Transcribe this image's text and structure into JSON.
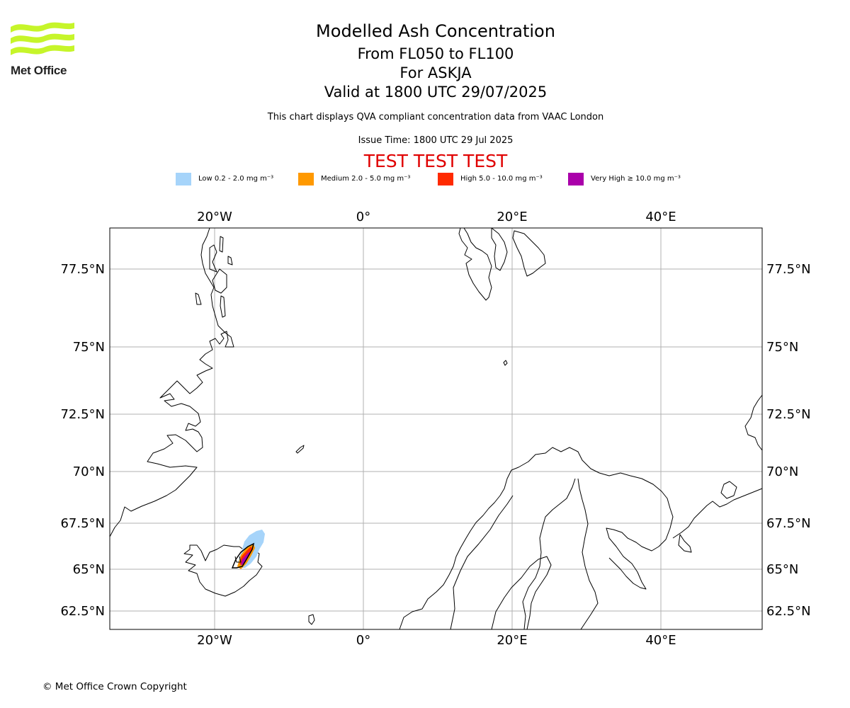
{
  "header": {
    "logo_text": "Met Office",
    "title": "Modelled Ash Concentration",
    "level_range": "From FL050 to FL100",
    "volcano": "For ASKJA",
    "valid_time": "Valid at 1800 UTC 29/07/2025",
    "description": "This chart displays QVA compliant concentration data from VAAC London",
    "issue_time": "Issue Time: 1800 UTC 29 Jul 2025",
    "test_banner": "TEST TEST TEST"
  },
  "legend": [
    {
      "name": "low",
      "label": "Low 0.2 - 2.0 mg m⁻³",
      "color": "#a6d4fa"
    },
    {
      "name": "medium",
      "label": "Medium 2.0 - 5.0 mg m⁻³",
      "color": "#ff9900"
    },
    {
      "name": "high",
      "label": "High 5.0 - 10.0 mg m⁻³",
      "color": "#ff2a00"
    },
    {
      "name": "very-high",
      "label": "Very High ≥ 10.0 mg m⁻³",
      "color": "#aa00aa"
    }
  ],
  "map": {
    "lon_labels": [
      "20°W",
      "0°",
      "20°E",
      "40°E"
    ],
    "lat_labels": [
      "77.5°N",
      "75°N",
      "72.5°N",
      "70°N",
      "67.5°N",
      "65°N",
      "62.5°N"
    ],
    "extent": {
      "lon": [
        -34,
        53
      ],
      "lat": [
        61.8,
        79
      ]
    }
  },
  "footer": {
    "copyright": "© Met Office Crown Copyright"
  }
}
